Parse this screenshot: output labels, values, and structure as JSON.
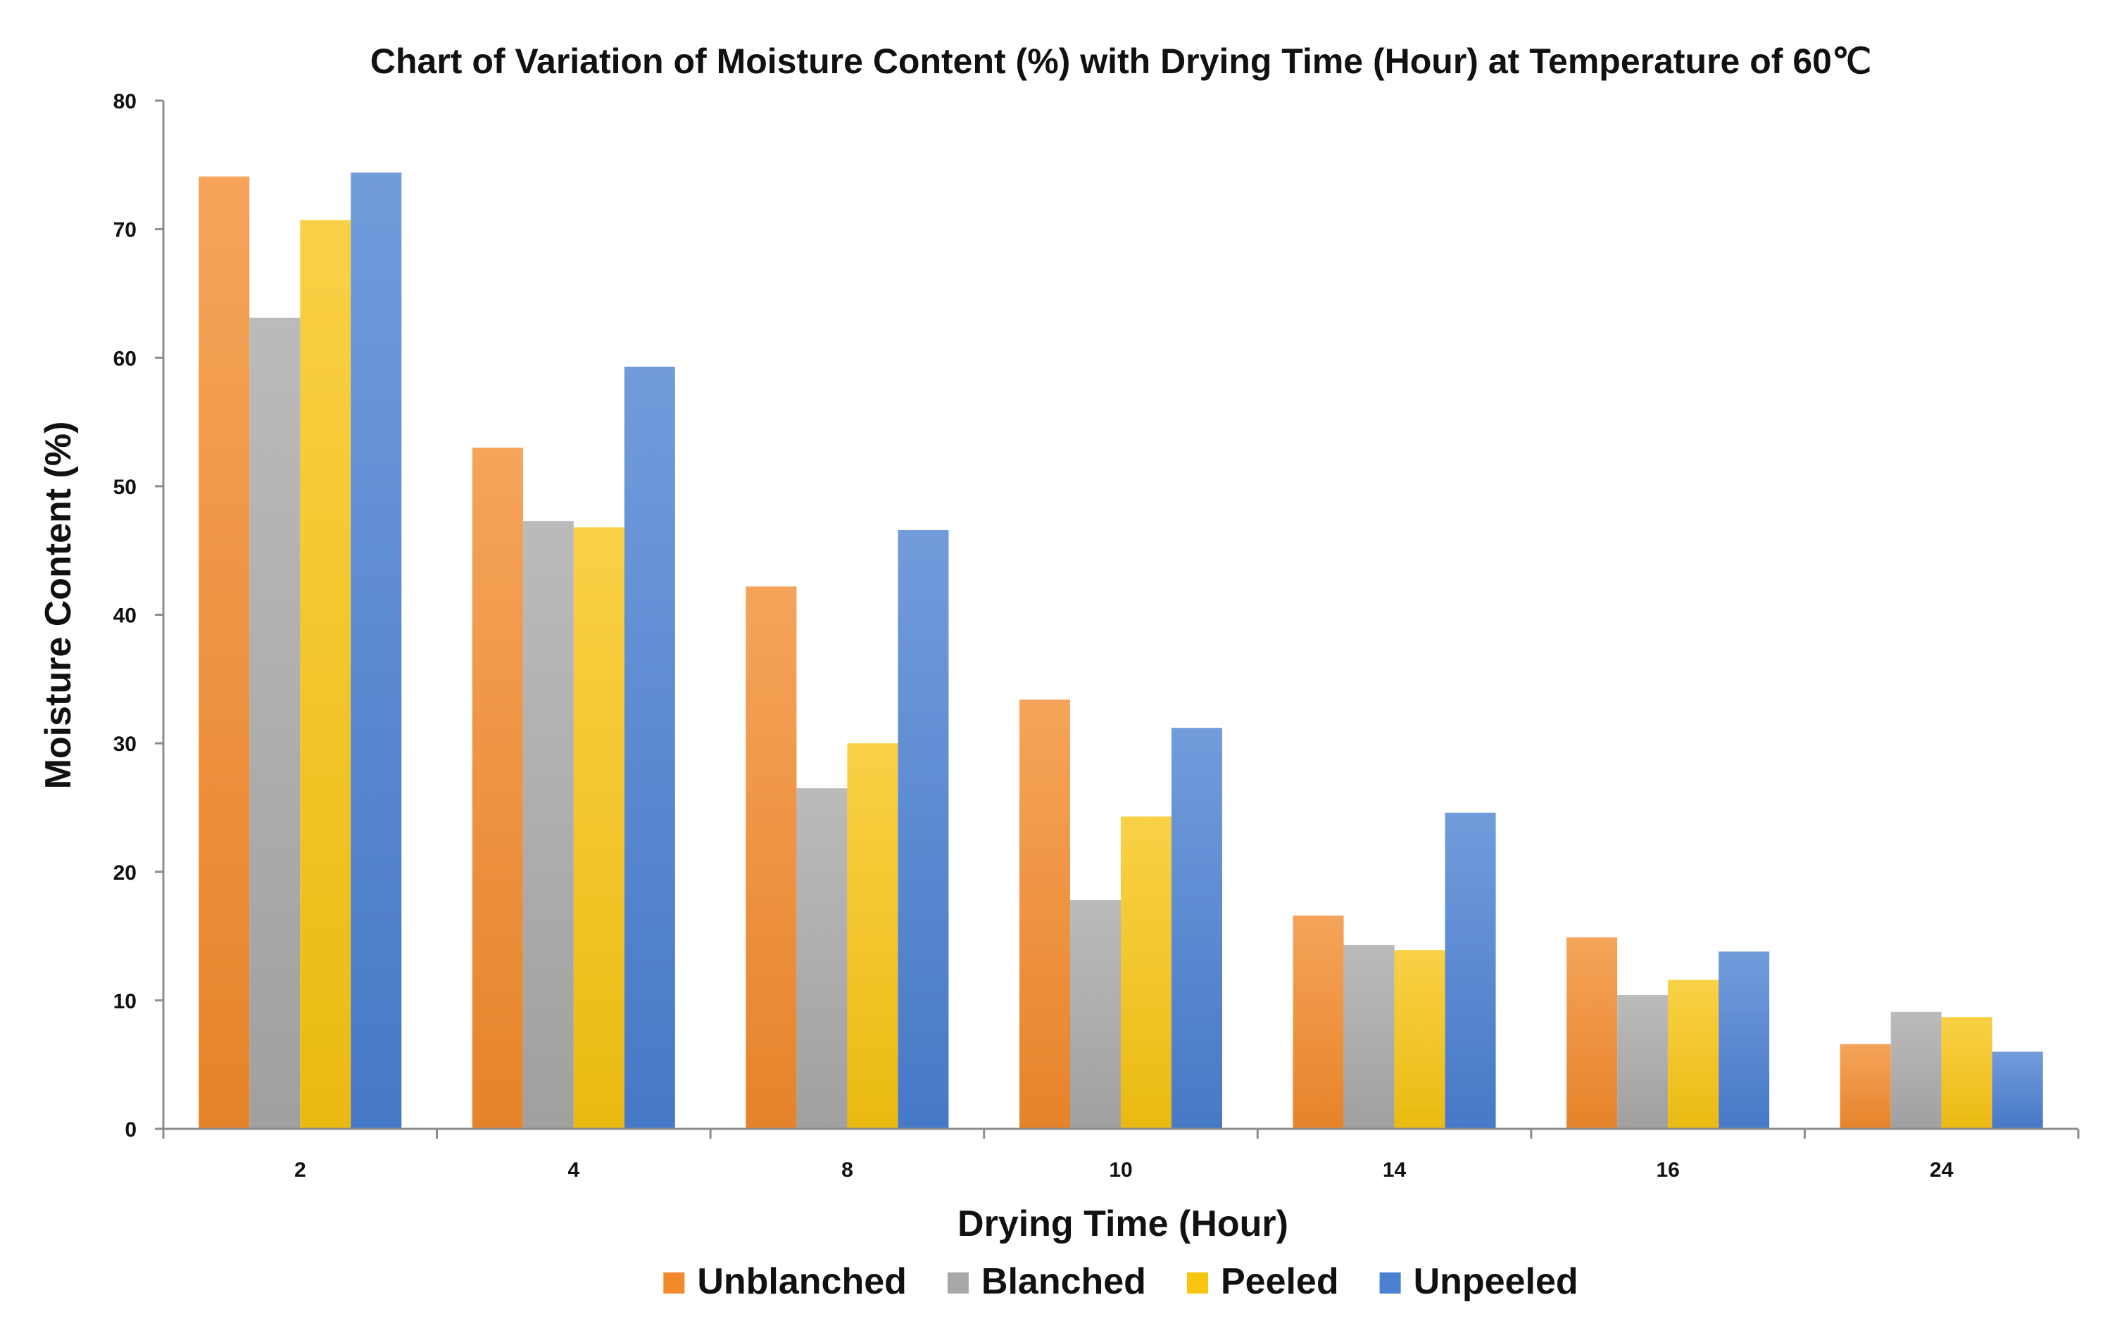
{
  "chart_data": {
    "type": "bar",
    "title": "Chart of Variation of Moisture Content (%) with Drying Time (Hour) at Temperature of 60℃",
    "xlabel": "Drying Time (Hour)",
    "ylabel": "Moisture Content (%)",
    "categories": [
      "2",
      "4",
      "8",
      "10",
      "14",
      "16",
      "24"
    ],
    "ylim": [
      0,
      80
    ],
    "yticks": [
      "0",
      "10",
      "20",
      "30",
      "40",
      "50",
      "60",
      "70",
      "80"
    ],
    "grid": false,
    "legend_position": "bottom",
    "series": [
      {
        "name": "Unblanched",
        "color": "#F28A2C",
        "values": [
          74.1,
          53.0,
          42.2,
          33.4,
          16.6,
          14.9,
          6.6
        ]
      },
      {
        "name": "Blanched",
        "color": "#A8A8A8",
        "values": [
          63.1,
          47.3,
          26.5,
          17.8,
          14.3,
          10.4,
          9.1
        ]
      },
      {
        "name": "Peeled",
        "color": "#F7C412",
        "values": [
          70.7,
          46.8,
          30.0,
          24.3,
          13.9,
          11.6,
          8.7
        ]
      },
      {
        "name": "Unpeeled",
        "color": "#4A7FD1",
        "values": [
          74.4,
          59.3,
          46.6,
          31.2,
          24.6,
          13.8,
          6.0
        ]
      }
    ]
  }
}
